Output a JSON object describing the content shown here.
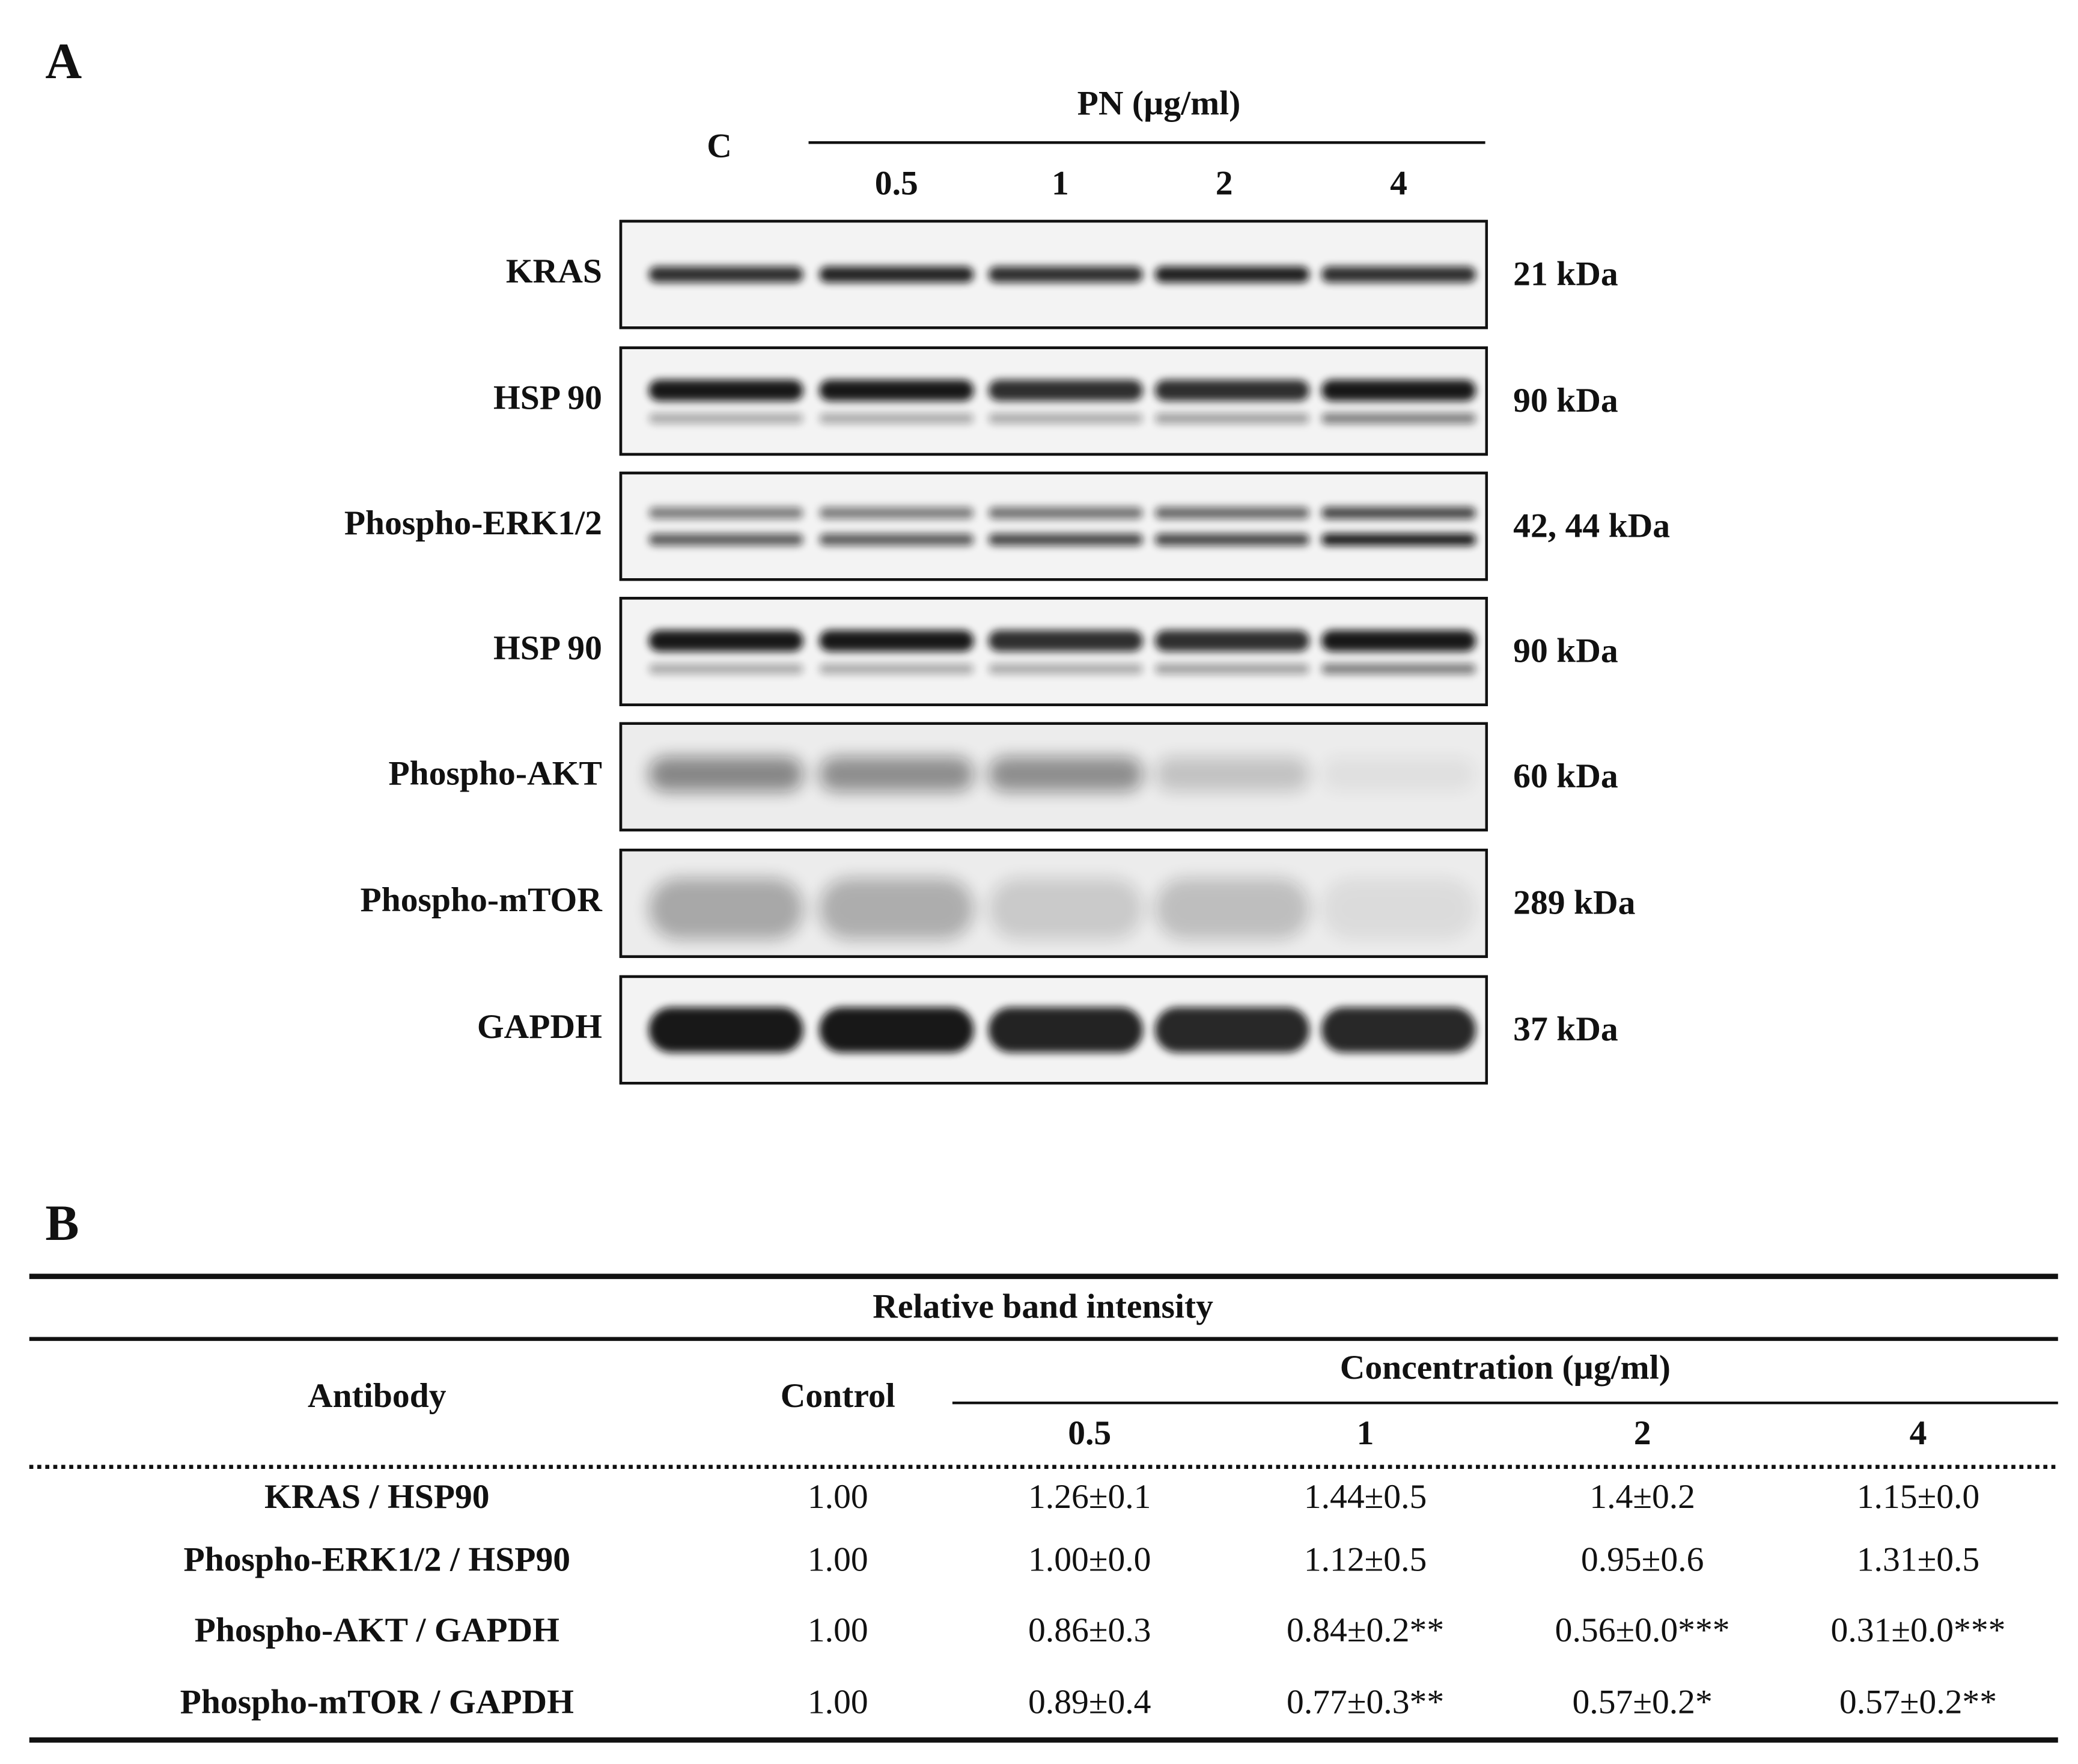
{
  "panel_a": {
    "label": "A",
    "group_label": "PN (µg/ml)",
    "lanes": [
      "C",
      "0.5",
      "1",
      "2",
      "4"
    ],
    "rows": [
      {
        "antibody": "KRAS",
        "size": "21 kDa"
      },
      {
        "antibody": "HSP 90",
        "size": "90 kDa"
      },
      {
        "antibody": "Phospho-ERK1/2",
        "size": "42, 44 kDa"
      },
      {
        "antibody": "HSP 90",
        "size": "90 kDa"
      },
      {
        "antibody": "Phospho-AKT",
        "size": "60 kDa"
      },
      {
        "antibody": "Phospho-mTOR",
        "size": "289 kDa"
      },
      {
        "antibody": "GAPDH",
        "size": "37 kDa"
      }
    ]
  },
  "panel_b": {
    "label": "B",
    "table": {
      "title": "Relative band intensity",
      "header": {
        "antibody": "Antibody",
        "control": "Control",
        "concentration": "Concentration (µg/ml)",
        "levels": [
          "0.5",
          "1",
          "2",
          "4"
        ]
      },
      "rows": [
        [
          "KRAS / HSP90",
          "1.00",
          "1.26±0.1",
          "1.44±0.5",
          "1.4±0.2",
          "1.15±0.0"
        ],
        [
          "Phospho-ERK1/2 / HSP90",
          "1.00",
          "1.00±0.0",
          "1.12±0.5",
          "0.95±0.6",
          "1.31±0.5"
        ],
        [
          "Phospho-AKT / GAPDH",
          "1.00",
          "0.86±0.3",
          "0.84±0.2**",
          "0.56±0.0***",
          "0.31±0.0***"
        ],
        [
          "Phospho-mTOR / GAPDH",
          "1.00",
          "0.89±0.4",
          "0.77±0.3**",
          "0.57±0.2*",
          "0.57±0.2**"
        ]
      ]
    }
  }
}
